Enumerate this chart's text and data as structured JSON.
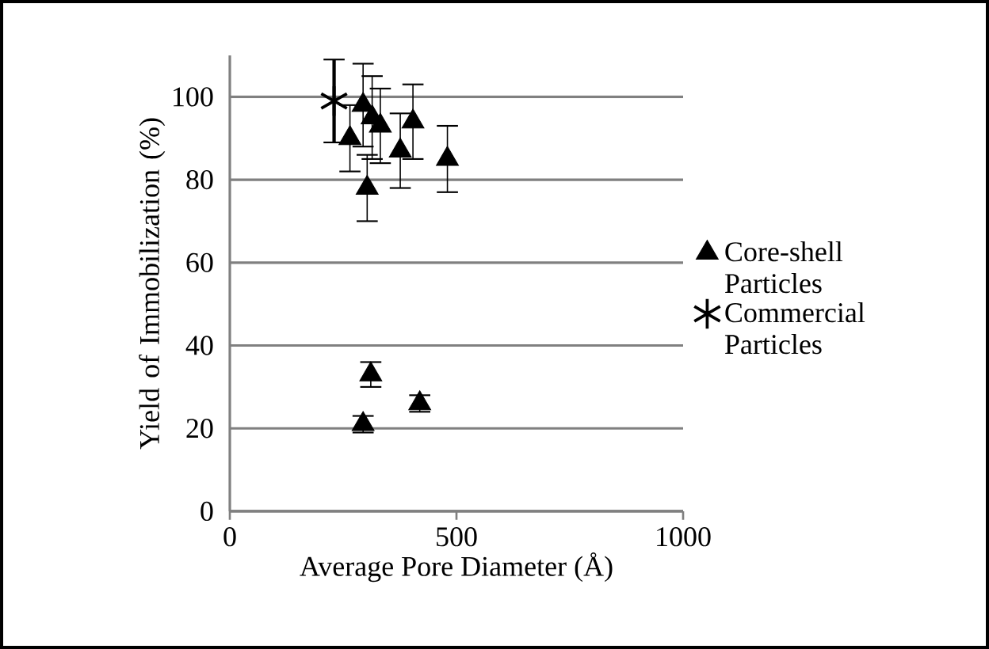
{
  "chart_data": {
    "type": "scatter",
    "xlabel": "Average Pore Diameter (Å)",
    "ylabel": "Yield of Immobilization (%)",
    "xlim": [
      0,
      1000
    ],
    "xticks": [
      0,
      500,
      1000
    ],
    "ylim": [
      0,
      110
    ],
    "yticks": [
      0,
      20,
      40,
      60,
      80,
      100
    ],
    "grid": "y",
    "legend": "right",
    "series": [
      {
        "name": "Core-shell Particles",
        "color": "#000000",
        "marker": "triangle",
        "x": [
          265,
          294,
          303,
          314,
          332,
          376,
          404,
          480,
          311,
          294,
          419
        ],
        "values": [
          90,
          98,
          78,
          95,
          93,
          87,
          94,
          85,
          33,
          21,
          26
        ],
        "errors": [
          8,
          10,
          8,
          10,
          9,
          9,
          9,
          8,
          3,
          2,
          2
        ]
      },
      {
        "name": "Commercial Particles",
        "color": "#000000",
        "marker": "cross",
        "x": [
          230
        ],
        "values": [
          99
        ],
        "errors": [
          10
        ]
      }
    ]
  }
}
